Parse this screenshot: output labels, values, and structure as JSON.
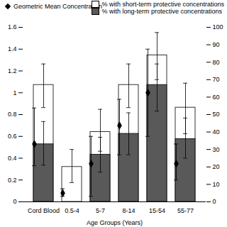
{
  "chart_data": {
    "type": "bar",
    "x_label": "Age Groups (Years)",
    "categories": [
      "Cord Blood",
      "0.5-4",
      "5-7",
      "8-14",
      "15-54",
      "55-77"
    ],
    "stacked": false,
    "legend": "top",
    "ylim": [
      0,
      1.6
    ],
    "yticks": [
      0,
      0.2,
      0.4,
      0.6,
      0.8,
      1,
      1.2,
      1.4,
      1.6
    ],
    "y2lim": [
      0,
      100
    ],
    "y2ticks": [
      0,
      10,
      20,
      30,
      40,
      50,
      60,
      70,
      80,
      90,
      100
    ],
    "series": [
      {
        "name": "% with short-term protective concentrations",
        "type": "bar",
        "axis": "y2",
        "color": "#ffffff",
        "values": [
          67,
          20,
          40,
          67,
          84,
          54
        ],
        "error_low": [
          54,
          11,
          29,
          54,
          70,
          39
        ],
        "error_high": [
          79,
          30,
          53,
          79,
          97,
          68
        ]
      },
      {
        "name": "% with long-term protective concentrations",
        "type": "bar",
        "axis": "y2",
        "color": "#595959",
        "values": [
          33,
          0,
          27,
          39,
          67,
          36
        ],
        "error_low": [
          21,
          0,
          17,
          27,
          52,
          25
        ],
        "error_high": [
          46,
          0,
          37,
          51,
          79,
          48
        ]
      },
      {
        "name": "Geometric Mean Concentration",
        "type": "scatter",
        "marker": "diamond",
        "color": "#000000",
        "values": [
          0.53,
          0.08,
          0.35,
          0.7,
          1.0,
          0.35
        ],
        "error_low": [
          0.33,
          0.05,
          0.05,
          0.43,
          0.6,
          0.2
        ],
        "error_high": [
          0.86,
          0.12,
          0.6,
          0.94,
          1.4,
          0.53
        ]
      }
    ]
  }
}
